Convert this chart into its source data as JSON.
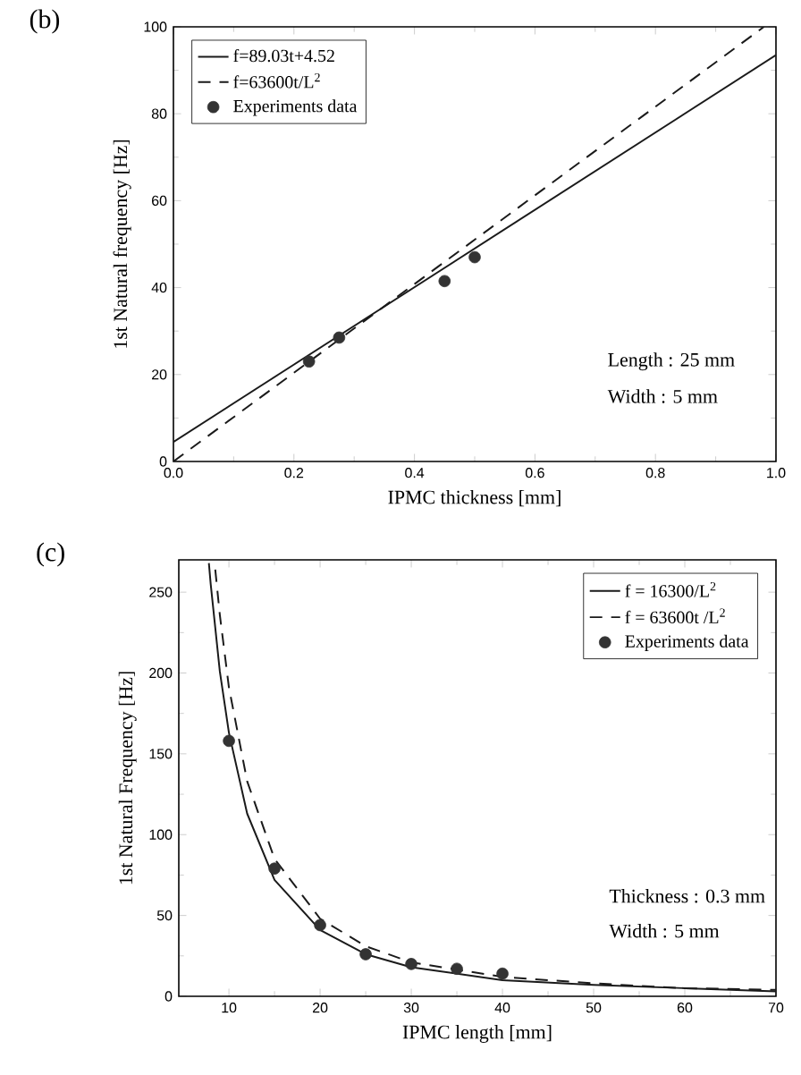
{
  "chart_data": [
    {
      "type": "line",
      "title": "(b)",
      "xlabel": "IPMC thickness [mm]",
      "ylabel": "1st Natural frequency [Hz]",
      "xlim": [
        0,
        1
      ],
      "ylim": [
        0,
        100
      ],
      "xticks": [
        {
          "value": 0,
          "label": "0.0"
        },
        0.2,
        0.4,
        0.6,
        0.8,
        {
          "value": 1,
          "label": "1.0"
        }
      ],
      "yticks": [
        0,
        20,
        40,
        60,
        80,
        100
      ],
      "legend": "top left",
      "annotations": [
        "Length : 25 mm",
        "Width : 5 mm"
      ],
      "series": [
        {
          "name": "f=89.03t+4.52",
          "type": "line",
          "line_style": "solid",
          "color": "#1a1a1a",
          "x": [
            0,
            1
          ],
          "values": [
            4.5,
            93.5
          ]
        },
        {
          "name": "f=63600t/L$^{2}$",
          "type": "line",
          "line_style": "dashed",
          "color": "#1a1a1a",
          "x": [
            0,
            0.98
          ],
          "values": [
            0,
            100
          ]
        },
        {
          "name": "Experiments data",
          "type": "scatter",
          "marker": "circle",
          "color": "#333333",
          "x": [
            0.225,
            0.275,
            0.45,
            0.5
          ],
          "values": [
            23,
            28.5,
            41.5,
            47
          ]
        }
      ]
    },
    {
      "type": "line",
      "title": "(c)",
      "xlabel": "IPMC length [mm]",
      "ylabel": "1st Natural Frequency [Hz]",
      "xlim": [
        4.5,
        70
      ],
      "ylim": [
        0,
        270
      ],
      "xticks": [
        10,
        20,
        30,
        40,
        50,
        60,
        70
      ],
      "yticks": [
        0,
        50,
        100,
        150,
        200,
        250
      ],
      "legend": "top right",
      "annotations": [
        "Thickness : 0.3 mm",
        "Width :  5 mm"
      ],
      "series": [
        {
          "name": "f = 16300/L$^{2}$",
          "type": "line",
          "line_style": "solid",
          "color": "#1a1a1a",
          "x": [
            7.8,
            8,
            9,
            10,
            12,
            15,
            20,
            25,
            30,
            40,
            50,
            60,
            70
          ],
          "values": [
            268,
            255,
            201,
            163,
            113,
            72,
            41,
            26,
            18,
            10,
            7,
            5,
            3
          ]
        },
        {
          "name": "f = 63600t /L$^{2}$",
          "type": "line",
          "line_style": "dashed",
          "color": "#1a1a1a",
          "x": [
            8.5,
            9,
            10,
            12,
            15,
            20,
            25,
            30,
            40,
            50,
            60,
            70
          ],
          "values": [
            264,
            236,
            191,
            133,
            85,
            48,
            31,
            21,
            12,
            8,
            5,
            4
          ]
        },
        {
          "name": "Experiments data",
          "type": "scatter",
          "marker": "circle",
          "color": "#333333",
          "x": [
            10,
            15,
            20,
            25,
            30,
            35,
            40
          ],
          "values": [
            158,
            79,
            44,
            26,
            20,
            17,
            14
          ]
        }
      ]
    }
  ]
}
